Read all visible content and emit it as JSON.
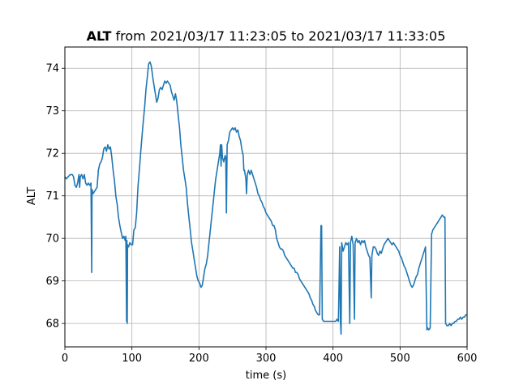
{
  "chart_data": {
    "type": "line",
    "title_bold": "ALT",
    "title_rest": " from 2021/03/17 11:23:05 to 2021/03/17 11:33:05",
    "xlabel": "time (s)",
    "ylabel": "ALT",
    "xlim": [
      0,
      600
    ],
    "ylim": [
      67.45,
      74.5
    ],
    "xticks": [
      0,
      100,
      200,
      300,
      400,
      500,
      600
    ],
    "yticks": [
      68,
      69,
      70,
      71,
      72,
      73,
      74
    ],
    "grid": true,
    "line_color": "#1f77b4",
    "series": [
      {
        "points": [
          [
            0,
            71.45
          ],
          [
            2,
            71.4
          ],
          [
            5,
            71.45
          ],
          [
            8,
            71.5
          ],
          [
            11,
            71.5
          ],
          [
            13,
            71.45
          ],
          [
            15,
            71.25
          ],
          [
            17,
            71.2
          ],
          [
            19,
            71.3
          ],
          [
            21,
            71.5
          ],
          [
            22,
            71.2
          ],
          [
            23,
            71.45
          ],
          [
            25,
            71.5
          ],
          [
            27,
            71.4
          ],
          [
            29,
            71.5
          ],
          [
            31,
            71.3
          ],
          [
            33,
            71.25
          ],
          [
            35,
            71.3
          ],
          [
            37,
            71.25
          ],
          [
            39,
            71.3
          ],
          [
            40,
            69.2
          ],
          [
            40.5,
            71.15
          ],
          [
            42,
            71.05
          ],
          [
            44,
            71.1
          ],
          [
            46,
            71.15
          ],
          [
            48,
            71.2
          ],
          [
            50,
            71.6
          ],
          [
            52,
            71.75
          ],
          [
            54,
            71.8
          ],
          [
            56,
            71.9
          ],
          [
            58,
            72.1
          ],
          [
            60,
            72.15
          ],
          [
            62,
            72.05
          ],
          [
            64,
            72.2
          ],
          [
            66,
            72.1
          ],
          [
            68,
            72.15
          ],
          [
            70,
            71.9
          ],
          [
            72,
            71.6
          ],
          [
            74,
            71.35
          ],
          [
            76,
            71.0
          ],
          [
            78,
            70.8
          ],
          [
            80,
            70.5
          ],
          [
            82,
            70.3
          ],
          [
            84,
            70.15
          ],
          [
            86,
            70.0
          ],
          [
            88,
            70.05
          ],
          [
            90,
            69.95
          ],
          [
            91,
            70.05
          ],
          [
            92,
            68.05
          ],
          [
            92.5,
            69.95
          ],
          [
            93,
            68.0
          ],
          [
            93.5,
            69.85
          ],
          [
            95,
            69.8
          ],
          [
            97,
            69.9
          ],
          [
            99,
            69.85
          ],
          [
            101,
            69.85
          ],
          [
            103,
            70.2
          ],
          [
            105,
            70.25
          ],
          [
            107,
            70.6
          ],
          [
            109,
            71.2
          ],
          [
            111,
            71.6
          ],
          [
            113,
            72.0
          ],
          [
            115,
            72.4
          ],
          [
            117,
            72.75
          ],
          [
            119,
            73.1
          ],
          [
            121,
            73.5
          ],
          [
            123,
            73.8
          ],
          [
            125,
            74.1
          ],
          [
            127,
            74.15
          ],
          [
            129,
            74.05
          ],
          [
            131,
            73.8
          ],
          [
            133,
            73.6
          ],
          [
            135,
            73.4
          ],
          [
            137,
            73.2
          ],
          [
            139,
            73.3
          ],
          [
            141,
            73.5
          ],
          [
            143,
            73.55
          ],
          [
            145,
            73.5
          ],
          [
            147,
            73.6
          ],
          [
            149,
            73.7
          ],
          [
            151,
            73.65
          ],
          [
            153,
            73.7
          ],
          [
            155,
            73.65
          ],
          [
            157,
            73.6
          ],
          [
            159,
            73.45
          ],
          [
            161,
            73.35
          ],
          [
            163,
            73.25
          ],
          [
            165,
            73.4
          ],
          [
            167,
            73.2
          ],
          [
            169,
            72.9
          ],
          [
            171,
            72.6
          ],
          [
            173,
            72.2
          ],
          [
            175,
            71.9
          ],
          [
            177,
            71.6
          ],
          [
            179,
            71.4
          ],
          [
            181,
            71.2
          ],
          [
            183,
            70.8
          ],
          [
            185,
            70.5
          ],
          [
            187,
            70.2
          ],
          [
            189,
            69.9
          ],
          [
            191,
            69.7
          ],
          [
            193,
            69.5
          ],
          [
            195,
            69.3
          ],
          [
            197,
            69.1
          ],
          [
            199,
            69.0
          ],
          [
            201,
            68.95
          ],
          [
            203,
            68.85
          ],
          [
            205,
            68.9
          ],
          [
            207,
            69.1
          ],
          [
            209,
            69.3
          ],
          [
            211,
            69.4
          ],
          [
            213,
            69.6
          ],
          [
            215,
            69.9
          ],
          [
            217,
            70.2
          ],
          [
            219,
            70.5
          ],
          [
            221,
            70.8
          ],
          [
            223,
            71.1
          ],
          [
            225,
            71.4
          ],
          [
            227,
            71.6
          ],
          [
            229,
            71.8
          ],
          [
            231,
            72.0
          ],
          [
            232,
            72.2
          ],
          [
            233,
            71.7
          ],
          [
            234,
            72.2
          ],
          [
            235,
            71.9
          ],
          [
            237,
            71.8
          ],
          [
            239,
            71.95
          ],
          [
            240,
            71.9
          ],
          [
            241,
            70.6
          ],
          [
            242,
            72.2
          ],
          [
            244,
            72.3
          ],
          [
            246,
            72.5
          ],
          [
            248,
            72.55
          ],
          [
            250,
            72.6
          ],
          [
            252,
            72.55
          ],
          [
            254,
            72.6
          ],
          [
            256,
            72.5
          ],
          [
            258,
            72.55
          ],
          [
            260,
            72.4
          ],
          [
            262,
            72.3
          ],
          [
            264,
            72.1
          ],
          [
            266,
            71.95
          ],
          [
            267,
            71.6
          ],
          [
            268,
            71.6
          ],
          [
            270,
            71.4
          ],
          [
            271,
            71.05
          ],
          [
            272,
            71.5
          ],
          [
            274,
            71.6
          ],
          [
            276,
            71.5
          ],
          [
            278,
            71.6
          ],
          [
            280,
            71.5
          ],
          [
            282,
            71.4
          ],
          [
            284,
            71.3
          ],
          [
            286,
            71.2
          ],
          [
            288,
            71.05
          ],
          [
            290,
            71.0
          ],
          [
            292,
            70.9
          ],
          [
            294,
            70.85
          ],
          [
            296,
            70.75
          ],
          [
            298,
            70.7
          ],
          [
            300,
            70.6
          ],
          [
            302,
            70.55
          ],
          [
            304,
            70.5
          ],
          [
            306,
            70.45
          ],
          [
            308,
            70.4
          ],
          [
            310,
            70.3
          ],
          [
            312,
            70.3
          ],
          [
            314,
            70.2
          ],
          [
            316,
            70.0
          ],
          [
            318,
            69.9
          ],
          [
            320,
            69.8
          ],
          [
            322,
            69.75
          ],
          [
            324,
            69.75
          ],
          [
            326,
            69.7
          ],
          [
            328,
            69.6
          ],
          [
            330,
            69.55
          ],
          [
            332,
            69.5
          ],
          [
            334,
            69.45
          ],
          [
            336,
            69.4
          ],
          [
            338,
            69.35
          ],
          [
            340,
            69.3
          ],
          [
            342,
            69.3
          ],
          [
            344,
            69.2
          ],
          [
            346,
            69.2
          ],
          [
            348,
            69.15
          ],
          [
            350,
            69.05
          ],
          [
            352,
            69.0
          ],
          [
            354,
            68.95
          ],
          [
            356,
            68.9
          ],
          [
            358,
            68.85
          ],
          [
            360,
            68.8
          ],
          [
            362,
            68.75
          ],
          [
            364,
            68.7
          ],
          [
            366,
            68.6
          ],
          [
            368,
            68.55
          ],
          [
            370,
            68.45
          ],
          [
            372,
            68.4
          ],
          [
            374,
            68.3
          ],
          [
            376,
            68.25
          ],
          [
            378,
            68.2
          ],
          [
            380,
            68.2
          ],
          [
            382,
            70.3
          ],
          [
            383,
            70.3
          ],
          [
            384,
            68.1
          ],
          [
            386,
            68.05
          ],
          [
            390,
            68.05
          ],
          [
            394,
            68.05
          ],
          [
            398,
            68.05
          ],
          [
            402,
            68.05
          ],
          [
            404,
            68.05
          ],
          [
            406,
            68.1
          ],
          [
            408,
            68.05
          ],
          [
            410,
            69.8
          ],
          [
            411,
            68.05
          ],
          [
            412,
            67.75
          ],
          [
            413,
            69.9
          ],
          [
            415,
            69.7
          ],
          [
            417,
            69.8
          ],
          [
            419,
            69.9
          ],
          [
            421,
            69.85
          ],
          [
            423,
            69.9
          ],
          [
            425,
            68.0
          ],
          [
            426,
            69.9
          ],
          [
            428,
            70.05
          ],
          [
            430,
            69.85
          ],
          [
            432,
            68.1
          ],
          [
            433,
            69.9
          ],
          [
            435,
            70.0
          ],
          [
            437,
            69.9
          ],
          [
            439,
            69.95
          ],
          [
            441,
            69.85
          ],
          [
            443,
            69.95
          ],
          [
            445,
            69.9
          ],
          [
            447,
            69.95
          ],
          [
            449,
            69.8
          ],
          [
            451,
            69.7
          ],
          [
            453,
            69.6
          ],
          [
            455,
            69.55
          ],
          [
            457,
            68.6
          ],
          [
            458,
            69.6
          ],
          [
            460,
            69.8
          ],
          [
            462,
            69.8
          ],
          [
            464,
            69.75
          ],
          [
            466,
            69.65
          ],
          [
            468,
            69.6
          ],
          [
            470,
            69.7
          ],
          [
            472,
            69.65
          ],
          [
            474,
            69.75
          ],
          [
            476,
            69.85
          ],
          [
            478,
            69.9
          ],
          [
            480,
            69.95
          ],
          [
            482,
            70.0
          ],
          [
            484,
            69.95
          ],
          [
            486,
            69.9
          ],
          [
            488,
            69.85
          ],
          [
            490,
            69.9
          ],
          [
            492,
            69.85
          ],
          [
            494,
            69.8
          ],
          [
            496,
            69.75
          ],
          [
            498,
            69.7
          ],
          [
            500,
            69.6
          ],
          [
            502,
            69.55
          ],
          [
            504,
            69.45
          ],
          [
            506,
            69.35
          ],
          [
            508,
            69.3
          ],
          [
            510,
            69.2
          ],
          [
            512,
            69.1
          ],
          [
            514,
            69.0
          ],
          [
            516,
            68.9
          ],
          [
            518,
            68.85
          ],
          [
            520,
            68.9
          ],
          [
            522,
            69.0
          ],
          [
            524,
            69.1
          ],
          [
            526,
            69.15
          ],
          [
            528,
            69.3
          ],
          [
            530,
            69.4
          ],
          [
            532,
            69.5
          ],
          [
            534,
            69.6
          ],
          [
            536,
            69.7
          ],
          [
            538,
            69.8
          ],
          [
            540,
            67.85
          ],
          [
            541,
            67.9
          ],
          [
            543,
            67.85
          ],
          [
            545,
            67.9
          ],
          [
            547,
            70.1
          ],
          [
            549,
            70.2
          ],
          [
            551,
            70.25
          ],
          [
            553,
            70.3
          ],
          [
            555,
            70.35
          ],
          [
            557,
            70.4
          ],
          [
            559,
            70.45
          ],
          [
            561,
            70.5
          ],
          [
            563,
            70.55
          ],
          [
            565,
            70.5
          ],
          [
            567,
            70.5
          ],
          [
            568,
            68.0
          ],
          [
            570,
            67.95
          ],
          [
            572,
            67.95
          ],
          [
            574,
            68.0
          ],
          [
            576,
            67.95
          ],
          [
            578,
            68.0
          ],
          [
            580,
            68.0
          ],
          [
            582,
            68.05
          ],
          [
            584,
            68.05
          ],
          [
            586,
            68.1
          ],
          [
            588,
            68.1
          ],
          [
            590,
            68.15
          ],
          [
            592,
            68.1
          ],
          [
            594,
            68.15
          ],
          [
            596,
            68.15
          ],
          [
            598,
            68.2
          ],
          [
            600,
            68.2
          ]
        ]
      }
    ]
  }
}
